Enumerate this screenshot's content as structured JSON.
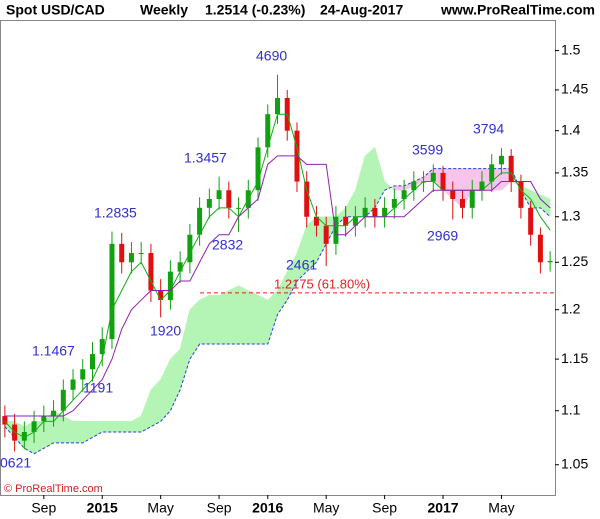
{
  "chart_data": {
    "type": "candlestick",
    "title": "Spot USD/CAD",
    "period": "Weekly",
    "last": "1.2514 (-0.23%)",
    "date": "24-Aug-2017",
    "source": "www.ProRealTime.com",
    "copyright": "© ProRealTime.com",
    "categories": [
      null,
      null,
      null,
      null,
      "Sep",
      null,
      null,
      null,
      null,
      null,
      "2015",
      null,
      null,
      null,
      null,
      null,
      "May",
      null,
      null,
      null,
      null,
      null,
      "Sep",
      null,
      null,
      null,
      null,
      "2016",
      null,
      null,
      null,
      null,
      null,
      "May",
      null,
      null,
      null,
      null,
      null,
      "Sep",
      null,
      null,
      null,
      null,
      null,
      "2017",
      null,
      null,
      null,
      null,
      null,
      "May",
      null,
      null,
      null,
      null,
      null
    ],
    "open": [
      1.095,
      1.087,
      1.072,
      1.08,
      1.09,
      1.095,
      1.1,
      1.12,
      1.13,
      1.14,
      1.155,
      1.17,
      1.27,
      1.25,
      1.26,
      1.26,
      1.22,
      1.21,
      1.24,
      1.25,
      1.28,
      1.31,
      1.32,
      1.33,
      1.31,
      1.31,
      1.33,
      1.38,
      1.42,
      1.44,
      1.4,
      1.34,
      1.3,
      1.29,
      1.27,
      1.3,
      1.29,
      1.3,
      1.31,
      1.3,
      1.31,
      1.32,
      1.33,
      1.34,
      1.34,
      1.35,
      1.33,
      1.32,
      1.31,
      1.33,
      1.34,
      1.36,
      1.37,
      1.34,
      1.31,
      1.28,
      1.25
    ],
    "high": [
      1.105,
      1.097,
      1.09,
      1.1,
      1.105,
      1.11,
      1.13,
      1.14,
      1.15,
      1.167,
      1.182,
      1.2835,
      1.282,
      1.272,
      1.272,
      1.27,
      1.232,
      1.252,
      1.262,
      1.292,
      1.322,
      1.332,
      1.3457,
      1.34,
      1.322,
      1.342,
      1.392,
      1.432,
      1.469,
      1.45,
      1.41,
      1.352,
      1.312,
      1.3,
      1.312,
      1.312,
      1.312,
      1.322,
      1.32,
      1.322,
      1.332,
      1.342,
      1.352,
      1.352,
      1.3599,
      1.358,
      1.34,
      1.33,
      1.342,
      1.352,
      1.372,
      1.3794,
      1.378,
      1.348,
      1.318,
      1.288,
      1.262
    ],
    "low": [
      1.075,
      1.0621,
      1.064,
      1.07,
      1.08,
      1.085,
      1.09,
      1.11,
      1.118,
      1.128,
      1.143,
      1.16,
      1.238,
      1.238,
      1.248,
      1.208,
      1.192,
      1.2,
      1.228,
      1.238,
      1.268,
      1.298,
      1.308,
      1.298,
      1.2832,
      1.298,
      1.318,
      1.368,
      1.408,
      1.388,
      1.328,
      1.288,
      1.278,
      1.2461,
      1.258,
      1.278,
      1.278,
      1.288,
      1.288,
      1.288,
      1.298,
      1.308,
      1.318,
      1.328,
      1.328,
      1.318,
      1.2969,
      1.298,
      1.298,
      1.318,
      1.328,
      1.348,
      1.328,
      1.298,
      1.268,
      1.238,
      1.24
    ],
    "close": [
      1.087,
      1.072,
      1.08,
      1.09,
      1.095,
      1.1,
      1.12,
      1.13,
      1.14,
      1.155,
      1.17,
      1.27,
      1.25,
      1.26,
      1.26,
      1.22,
      1.21,
      1.24,
      1.25,
      1.28,
      1.31,
      1.32,
      1.33,
      1.31,
      1.31,
      1.33,
      1.38,
      1.42,
      1.44,
      1.4,
      1.34,
      1.3,
      1.29,
      1.27,
      1.3,
      1.29,
      1.3,
      1.31,
      1.3,
      1.31,
      1.32,
      1.33,
      1.34,
      1.34,
      1.35,
      1.33,
      1.32,
      1.31,
      1.33,
      1.34,
      1.36,
      1.37,
      1.34,
      1.31,
      1.28,
      1.25,
      1.2514
    ],
    "up_color": "#10a010",
    "down_color": "#e01010",
    "lines": [
      {
        "color": "#10b010",
        "values": [
          1.09,
          1.08,
          1.075,
          1.08,
          1.09,
          1.09,
          1.1,
          1.11,
          1.12,
          1.13,
          1.15,
          1.2,
          1.22,
          1.24,
          1.25,
          1.23,
          1.21,
          1.22,
          1.24,
          1.26,
          1.28,
          1.3,
          1.31,
          1.31,
          1.3,
          1.32,
          1.34,
          1.38,
          1.42,
          1.42,
          1.38,
          1.33,
          1.3,
          1.29,
          1.29,
          1.29,
          1.3,
          1.3,
          1.3,
          1.3,
          1.31,
          1.32,
          1.33,
          1.34,
          1.34,
          1.33,
          1.33,
          1.33,
          1.33,
          1.33,
          1.34,
          1.35,
          1.35,
          1.33,
          1.32,
          1.3,
          1.285
        ]
      },
      {
        "color": "#9020b0",
        "values": [
          1.095,
          1.095,
          1.095,
          1.095,
          1.095,
          1.095,
          1.095,
          1.1,
          1.11,
          1.12,
          1.13,
          1.15,
          1.18,
          1.2,
          1.21,
          1.22,
          1.22,
          1.22,
          1.23,
          1.23,
          1.25,
          1.27,
          1.28,
          1.28,
          1.3,
          1.31,
          1.32,
          1.36,
          1.37,
          1.37,
          1.37,
          1.36,
          1.36,
          1.36,
          1.28,
          1.28,
          1.29,
          1.3,
          1.3,
          1.3,
          1.3,
          1.3,
          1.31,
          1.32,
          1.33,
          1.33,
          1.33,
          1.33,
          1.33,
          1.33,
          1.33,
          1.34,
          1.34,
          1.34,
          1.34,
          1.32,
          1.31
        ]
      }
    ],
    "cloud": {
      "up_color": "#b4f4b4",
      "down_color": "#f8c4ec",
      "edge_color": "#2040e0",
      "span_a": [
        1.09,
        1.09,
        1.085,
        1.09,
        1.09,
        1.1,
        1.095,
        1.09,
        1.09,
        1.09,
        1.09,
        1.09,
        1.09,
        1.09,
        1.095,
        1.12,
        1.13,
        1.15,
        1.16,
        1.2,
        1.21,
        1.215,
        1.215,
        1.22,
        1.225,
        1.22,
        1.215,
        1.21,
        1.22,
        1.24,
        1.26,
        1.29,
        1.3,
        1.3,
        1.3,
        1.31,
        1.33,
        1.37,
        1.38,
        1.34,
        1.33,
        1.33,
        1.335,
        1.34,
        1.34,
        1.33,
        1.32,
        1.31,
        1.33,
        1.33,
        1.33,
        1.33,
        1.34,
        1.335,
        1.33,
        1.325,
        1.32
      ],
      "span_b": [
        1.085,
        1.075,
        1.065,
        1.06,
        1.065,
        1.07,
        1.07,
        1.07,
        1.07,
        1.075,
        1.08,
        1.08,
        1.08,
        1.08,
        1.08,
        1.085,
        1.09,
        1.1,
        1.12,
        1.15,
        1.165,
        1.165,
        1.165,
        1.165,
        1.165,
        1.165,
        1.165,
        1.165,
        1.195,
        1.21,
        1.23,
        1.24,
        1.25,
        1.27,
        1.29,
        1.3,
        1.3,
        1.3,
        1.31,
        1.33,
        1.335,
        1.335,
        1.34,
        1.345,
        1.355,
        1.355,
        1.355,
        1.355,
        1.355,
        1.355,
        1.355,
        1.355,
        1.355,
        1.33,
        1.31,
        1.31,
        1.3
      ]
    },
    "retracement": {
      "value": 1.2175,
      "label": "1.2175 (61.80%)",
      "color": "#e02020"
    },
    "annotations": [
      "0621",
      "1.1467",
      "1191",
      "1.2835",
      "1920",
      "2832",
      "1.3457",
      "4690",
      "2461",
      "3599",
      "2969",
      "3794"
    ],
    "log": true,
    "grid": false,
    "ylim": [
      1.023,
      1.54
    ],
    "yticks": [
      1.05,
      1.1,
      1.15,
      1.2,
      1.25,
      1.3,
      1.35,
      1.4,
      1.45,
      1.5
    ]
  }
}
